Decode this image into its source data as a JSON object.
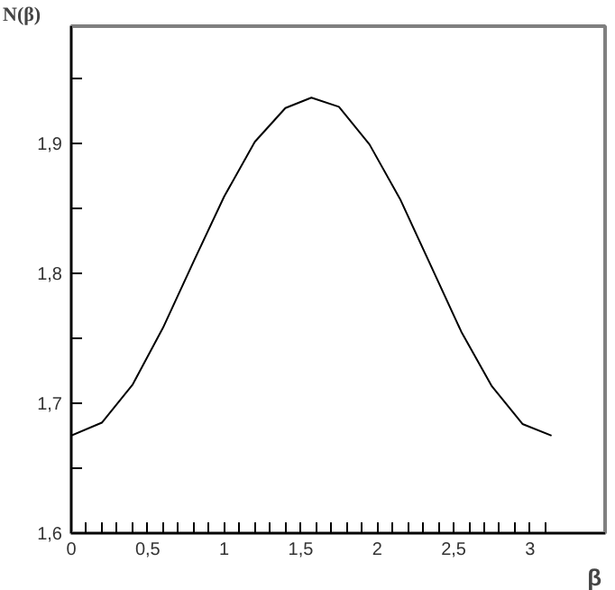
{
  "chart_data": {
    "type": "line",
    "xlabel": "β",
    "ylabel": "N(β)",
    "x": [
      0,
      0.2,
      0.4,
      0.6,
      0.8,
      1.0,
      1.2,
      1.4,
      1.57,
      1.75,
      1.95,
      2.15,
      2.35,
      2.55,
      2.75,
      2.95,
      3.14
    ],
    "series": [
      {
        "color": "#000000",
        "values": [
          1.675,
          1.685,
          1.714,
          1.758,
          1.809,
          1.859,
          1.901,
          1.927,
          1.935,
          1.928,
          1.899,
          1.857,
          1.806,
          1.755,
          1.713,
          1.684,
          1.675
        ]
      }
    ],
    "xlim": [
      0,
      3.49
    ],
    "ylim": [
      1.6,
      1.99
    ],
    "xticks": [
      {
        "value": 0,
        "label": "0"
      },
      {
        "value": 0.1,
        "label": null
      },
      {
        "value": 0.2,
        "label": null
      },
      {
        "value": 0.3,
        "label": null
      },
      {
        "value": 0.4,
        "label": null
      },
      {
        "value": 0.5,
        "label": "0,5"
      },
      {
        "value": 0.6,
        "label": null
      },
      {
        "value": 0.7,
        "label": null
      },
      {
        "value": 0.8,
        "label": null
      },
      {
        "value": 0.9,
        "label": null
      },
      {
        "value": 1,
        "label": "1"
      },
      {
        "value": 1.1,
        "label": null
      },
      {
        "value": 1.2,
        "label": null
      },
      {
        "value": 1.3,
        "label": null
      },
      {
        "value": 1.4,
        "label": null
      },
      {
        "value": 1.5,
        "label": "1,5"
      },
      {
        "value": 1.6,
        "label": null
      },
      {
        "value": 1.7,
        "label": null
      },
      {
        "value": 1.8,
        "label": null
      },
      {
        "value": 1.9,
        "label": null
      },
      {
        "value": 2,
        "label": "2"
      },
      {
        "value": 2.1,
        "label": null
      },
      {
        "value": 2.2,
        "label": null
      },
      {
        "value": 2.3,
        "label": null
      },
      {
        "value": 2.4,
        "label": null
      },
      {
        "value": 2.5,
        "label": "2,5"
      },
      {
        "value": 2.6,
        "label": null
      },
      {
        "value": 2.7,
        "label": null
      },
      {
        "value": 2.8,
        "label": null
      },
      {
        "value": 2.9,
        "label": null
      },
      {
        "value": 3,
        "label": "3"
      },
      {
        "value": 3.1,
        "label": null
      }
    ],
    "yticks": [
      {
        "value": 1.6,
        "label": "1,6"
      },
      {
        "value": 1.65,
        "label": null
      },
      {
        "value": 1.7,
        "label": "1,7"
      },
      {
        "value": 1.75,
        "label": null
      },
      {
        "value": 1.8,
        "label": "1,8"
      },
      {
        "value": 1.85,
        "label": null
      },
      {
        "value": 1.9,
        "label": "1,9"
      },
      {
        "value": 1.95,
        "label": null
      }
    ],
    "grid": false,
    "marker": "none",
    "line_style": "solid"
  }
}
